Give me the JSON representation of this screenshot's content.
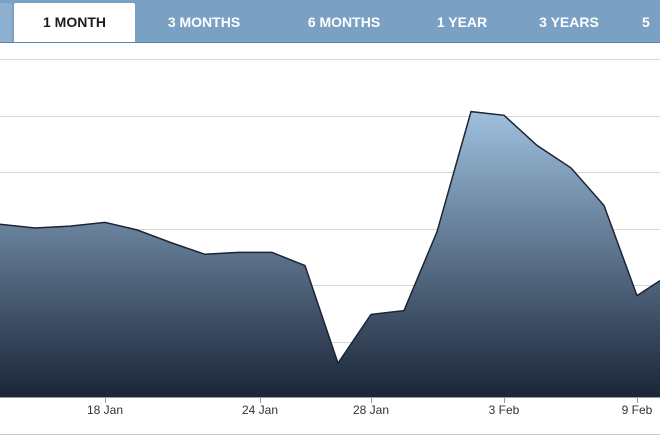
{
  "tabs": [
    {
      "label": "1 MONTH",
      "active": true
    },
    {
      "label": "3 MONTHS",
      "active": false
    },
    {
      "label": "6 MONTHS",
      "active": false
    },
    {
      "label": "1 YEAR",
      "active": false
    },
    {
      "label": "3 YEARS",
      "active": false
    },
    {
      "label": "5",
      "active": false
    }
  ],
  "colors": {
    "tab_bar": "#7aa0c4",
    "area_top": "#9ec0de",
    "area_bottom": "#1a2538",
    "line": "#1b2536",
    "grid": "#d6d6d6"
  },
  "chart_data": {
    "type": "area",
    "x_tick_labels": [
      "18 Jan",
      "24 Jan",
      "28 Jan",
      "3 Feb",
      "9 Feb"
    ],
    "grid": true,
    "y_axis_labels_visible": false,
    "series": [
      {
        "values": [
          62,
          60,
          61,
          63,
          59,
          52,
          46,
          47,
          47,
          40,
          -12,
          14,
          16,
          58,
          122,
          120,
          104,
          92,
          72,
          24,
          32
        ]
      }
    ],
    "ylim": [
      -30,
      150
    ]
  }
}
